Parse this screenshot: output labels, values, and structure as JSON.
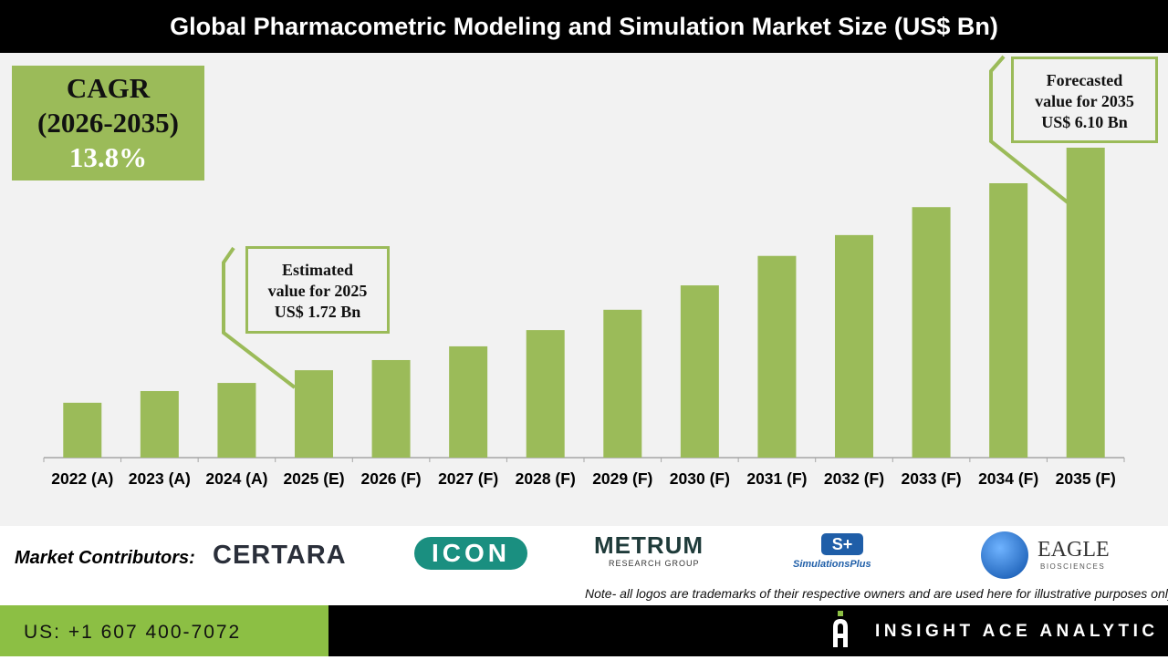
{
  "title": "Global Pharmacometric Modeling and Simulation Market Size (US$ Bn)",
  "cagr": {
    "label": "CAGR",
    "period": "(2026-2035)",
    "value": "13.8%"
  },
  "callouts": {
    "estimated": [
      "Estimated",
      "value for 2025",
      "US$ 1.72 Bn"
    ],
    "forecast": [
      "Forecasted",
      "value for 2035",
      "US$ 6.10 Bn"
    ]
  },
  "chart_data": {
    "type": "bar",
    "title": "Global Pharmacometric Modeling and Simulation Market Size (US$ Bn)",
    "categories": [
      "2022 (A)",
      "2023 (A)",
      "2024 (A)",
      "2025 (E)",
      "2026 (F)",
      "2027 (F)",
      "2028 (F)",
      "2029 (F)",
      "2030 (F)",
      "2031 (F)",
      "2032 (F)",
      "2033 (F)",
      "2034 (F)",
      "2035 (F)"
    ],
    "values": [
      1.08,
      1.31,
      1.47,
      1.72,
      1.92,
      2.19,
      2.51,
      2.91,
      3.39,
      3.97,
      4.38,
      4.93,
      5.4,
      6.1
    ],
    "ylim": [
      0,
      6.5
    ],
    "grid": false,
    "bar_color": "#9bbb59"
  },
  "contributors": {
    "label": "Market Contributors:",
    "logos": [
      "CERTARA",
      "ICON",
      "METRUM",
      "RESEARCH GROUP",
      "S+",
      "SimulationsPlus",
      "EAGLE",
      "BIOSCIENCES"
    ]
  },
  "note": "Note- all logos are trademarks of their respective owners and are used here for illustrative purposes only",
  "footer": {
    "phone": "US: +1 607 400-7072",
    "brand": "INSIGHT ACE ANALYTIC"
  }
}
